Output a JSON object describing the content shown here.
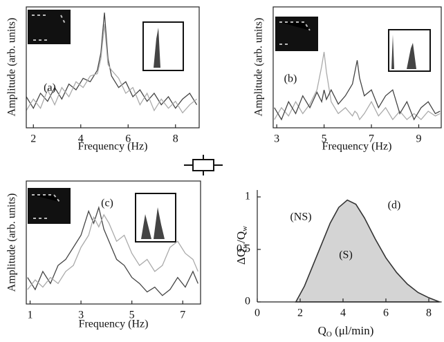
{
  "chart_data": [
    {
      "type": "line",
      "xlabel": "Frequency (Hz)",
      "ylabel": "Amplitude (arb. units)",
      "annotations": [
        "(a)"
      ],
      "xlim": [
        1.7,
        9
      ],
      "ylim": [
        -0.05,
        1
      ],
      "xticks": [
        2,
        4,
        6,
        8
      ],
      "x": [
        1.7,
        2.0,
        2.3,
        2.6,
        2.9,
        3.2,
        3.5,
        3.8,
        4.1,
        4.4,
        4.7,
        4.85,
        5.0,
        5.15,
        5.3,
        5.6,
        5.9,
        6.2,
        6.5,
        6.8,
        7.1,
        7.4,
        7.7,
        8.0,
        8.3,
        8.6,
        8.9
      ],
      "series": [
        {
          "color": "#444444",
          "values": [
            0.22,
            0.12,
            0.25,
            0.18,
            0.3,
            0.2,
            0.33,
            0.28,
            0.38,
            0.35,
            0.45,
            0.6,
            0.95,
            0.55,
            0.4,
            0.3,
            0.35,
            0.22,
            0.28,
            0.18,
            0.25,
            0.15,
            0.22,
            0.12,
            0.2,
            0.25,
            0.15
          ]
        },
        {
          "color": "#aaaaaa",
          "values": [
            0.1,
            0.2,
            0.12,
            0.28,
            0.15,
            0.3,
            0.22,
            0.35,
            0.3,
            0.4,
            0.42,
            0.55,
            0.85,
            0.5,
            0.45,
            0.38,
            0.25,
            0.3,
            0.15,
            0.25,
            0.1,
            0.2,
            0.12,
            0.18,
            0.08,
            0.15,
            0.2
          ]
        }
      ]
    },
    {
      "type": "line",
      "xlabel": "Frequency (Hz)",
      "ylabel": "Amplitude (arb. units)",
      "annotations": [
        "(b)"
      ],
      "xlim": [
        2.85,
        9.95
      ],
      "ylim": [
        -0.02,
        1
      ],
      "xticks": [
        3,
        5,
        7,
        9
      ],
      "x": [
        2.9,
        3.2,
        3.5,
        3.8,
        4.1,
        4.4,
        4.7,
        4.9,
        5.0,
        5.1,
        5.3,
        5.6,
        5.9,
        6.2,
        6.3,
        6.4,
        6.5,
        6.7,
        7.0,
        7.3,
        7.6,
        7.9,
        8.2,
        8.5,
        8.8,
        9.1,
        9.4,
        9.7,
        9.9
      ],
      "series": [
        {
          "color": "#aaaaaa",
          "values": [
            0.05,
            0.15,
            0.08,
            0.2,
            0.1,
            0.18,
            0.3,
            0.5,
            0.62,
            0.45,
            0.2,
            0.1,
            0.15,
            0.08,
            0.12,
            0.1,
            0.05,
            0.1,
            0.2,
            0.08,
            0.15,
            0.05,
            0.12,
            0.05,
            0.1,
            0.05,
            0.12,
            0.08,
            0.1
          ]
        },
        {
          "color": "#444444",
          "values": [
            0.15,
            0.05,
            0.2,
            0.1,
            0.25,
            0.15,
            0.28,
            0.2,
            0.3,
            0.22,
            0.3,
            0.18,
            0.25,
            0.35,
            0.45,
            0.55,
            0.4,
            0.25,
            0.3,
            0.15,
            0.25,
            0.3,
            0.1,
            0.2,
            0.05,
            0.15,
            0.2,
            0.1,
            0.12
          ]
        }
      ]
    },
    {
      "type": "line",
      "xlabel": "Frequency (Hz)",
      "ylabel": "Amplitude (arb. units)",
      "annotations": [
        "(c)"
      ],
      "xlim": [
        0.85,
        7.7
      ],
      "ylim": [
        -0.02,
        1
      ],
      "xticks": [
        1,
        3,
        5,
        7
      ],
      "x": [
        0.9,
        1.2,
        1.5,
        1.8,
        2.1,
        2.4,
        2.7,
        3.0,
        3.3,
        3.5,
        3.7,
        3.9,
        4.1,
        4.4,
        4.7,
        5.0,
        5.3,
        5.6,
        5.9,
        6.2,
        6.5,
        6.8,
        7.1,
        7.4,
        7.6
      ],
      "series": [
        {
          "color": "#444444",
          "values": [
            0.2,
            0.1,
            0.25,
            0.15,
            0.3,
            0.35,
            0.45,
            0.55,
            0.75,
            0.65,
            0.78,
            0.6,
            0.5,
            0.35,
            0.3,
            0.2,
            0.15,
            0.08,
            0.12,
            0.05,
            0.1,
            0.2,
            0.12,
            0.25,
            0.15
          ]
        },
        {
          "color": "#aaaaaa",
          "values": [
            0.1,
            0.18,
            0.12,
            0.2,
            0.15,
            0.25,
            0.3,
            0.45,
            0.55,
            0.7,
            0.62,
            0.72,
            0.65,
            0.5,
            0.55,
            0.4,
            0.3,
            0.35,
            0.25,
            0.3,
            0.45,
            0.5,
            0.4,
            0.35,
            0.25
          ]
        }
      ]
    },
    {
      "type": "area",
      "xlabel": [
        "Q",
        "O",
        " (μl/min)"
      ],
      "ylabel": [
        "ΔQ",
        "w",
        "/Q",
        "w"
      ],
      "annotations": [
        "(d)",
        "(NS)",
        "(S)"
      ],
      "xlim": [
        0,
        8.6
      ],
      "ylim": [
        0,
        1
      ],
      "xticks": [
        0,
        2,
        4,
        6,
        8
      ],
      "yticks": [
        0,
        0.5,
        1
      ],
      "x": [
        1.8,
        2.2,
        2.6,
        3.0,
        3.4,
        3.8,
        4.2,
        4.6,
        5.0,
        5.5,
        6.0,
        6.5,
        7.0,
        7.5,
        8.0,
        8.5
      ],
      "series": [
        {
          "color": "#d4d4d4",
          "values": [
            0,
            0.15,
            0.35,
            0.55,
            0.75,
            0.9,
            0.97,
            0.93,
            0.8,
            0.6,
            0.42,
            0.28,
            0.17,
            0.09,
            0.04,
            0
          ]
        }
      ]
    }
  ]
}
